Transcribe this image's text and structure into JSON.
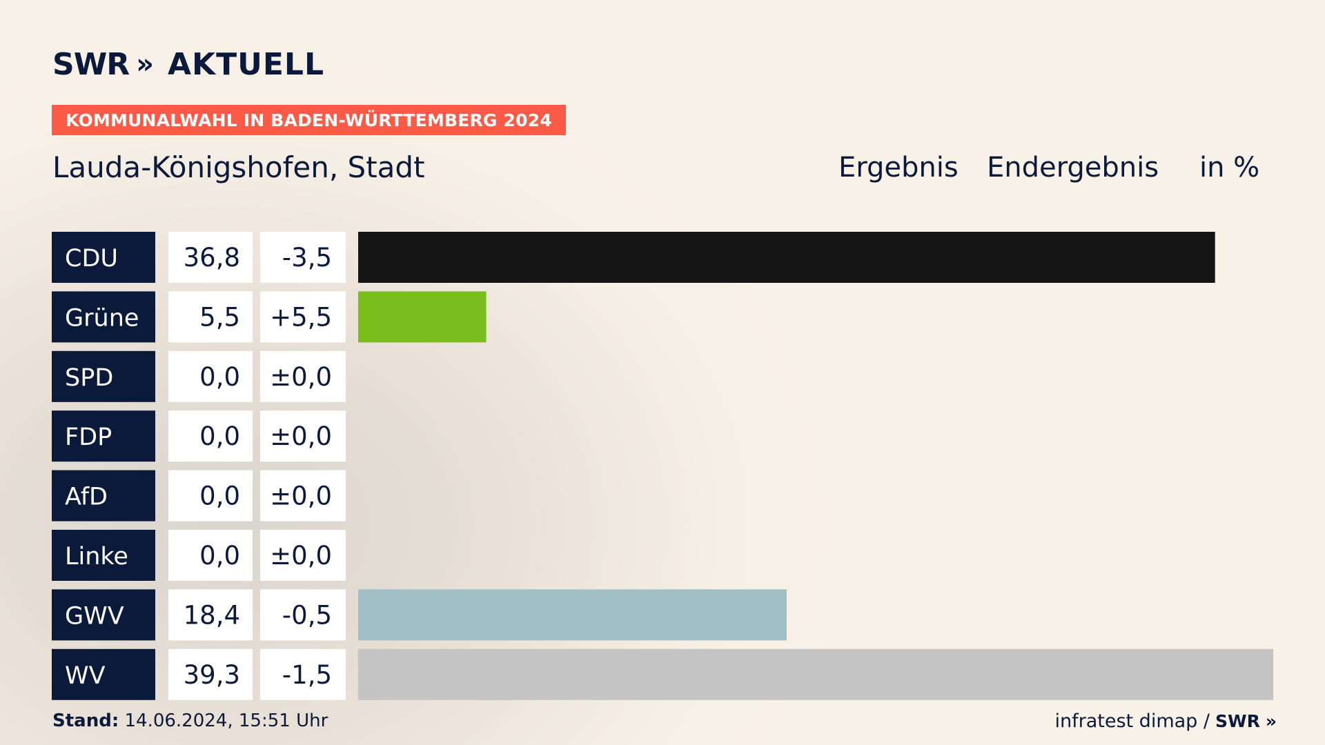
{
  "header": {
    "brand": "SWR",
    "brand_chevrons": "»",
    "brand_section": "AKTUELL",
    "banner": "KOMMUNALWAHL IN BADEN-WÜRTTEMBERG 2024",
    "location": "Lauda-Königshofen, Stadt",
    "col_result": "Ergebnis",
    "col_status": "Endergebnis",
    "col_unit": "in %"
  },
  "footer": {
    "stand_label": "Stand:",
    "stand_value": "14.06.2024, 15:51 Uhr",
    "source": "infratest dimap /",
    "source_brand": "SWR",
    "source_chevrons": "»"
  },
  "colors": {
    "label_bg": "#0b1a3a",
    "banner_bg": "#fa5a46"
  },
  "chart_data": {
    "type": "bar",
    "orientation": "horizontal",
    "categories": [
      "CDU",
      "Grüne",
      "SPD",
      "FDP",
      "AfD",
      "Linke",
      "GWV",
      "WV"
    ],
    "values": [
      36.8,
      5.5,
      0.0,
      0.0,
      0.0,
      0.0,
      18.4,
      39.3
    ],
    "value_labels": [
      "36,8",
      "5,5",
      "0,0",
      "0,0",
      "0,0",
      "0,0",
      "18,4",
      "39,3"
    ],
    "change_labels": [
      "-3,5",
      "+5,5",
      "±0,0",
      "±0,0",
      "±0,0",
      "±0,0",
      "-0,5",
      "-1,5"
    ],
    "changes": [
      -3.5,
      5.5,
      0.0,
      0.0,
      0.0,
      0.0,
      -0.5,
      -1.5
    ],
    "colors": [
      "#141414",
      "#7abe1e",
      "#e3000f",
      "#ffed00",
      "#009ee0",
      "#be3075",
      "#a2bec6",
      "#c4c4c4"
    ],
    "xlim": [
      0,
      39.3
    ]
  }
}
